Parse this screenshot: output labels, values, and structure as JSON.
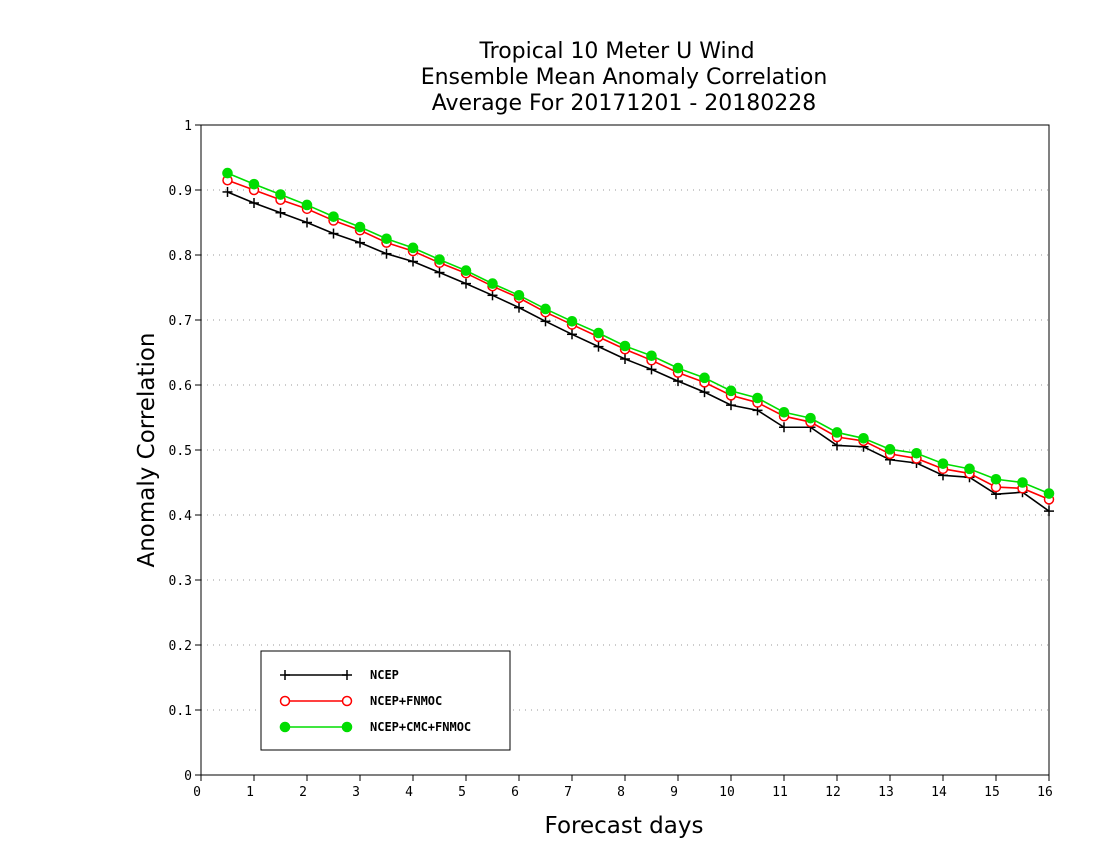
{
  "chart_data": {
    "type": "line",
    "title": [
      "Tropical 10 Meter U Wind",
      "Ensemble Mean Anomaly Correlation",
      "Average For 20171201 - 20180228"
    ],
    "xlabel": "Forecast days",
    "ylabel": "Anomaly Correlation",
    "xlim": [
      0,
      16
    ],
    "ylim": [
      0,
      1
    ],
    "xticks": [
      "0",
      "1",
      "2",
      "3",
      "4",
      "5",
      "6",
      "7",
      "8",
      "9",
      "10",
      "11",
      "12",
      "13",
      "14",
      "15",
      "16"
    ],
    "yticks": [
      "0",
      "0.1",
      "0.2",
      "0.3",
      "0.4",
      "0.5",
      "0.6",
      "0.7",
      "0.8",
      "0.9",
      "1"
    ],
    "grid": "horizontal dotted",
    "legend_position": "bottom-left",
    "x": [
      0.5,
      1,
      1.5,
      2,
      2.5,
      3,
      3.5,
      4,
      4.5,
      5,
      5.5,
      6,
      6.5,
      7,
      7.5,
      8,
      8.5,
      9,
      9.5,
      10,
      10.5,
      11,
      11.5,
      12,
      12.5,
      13,
      13.5,
      14,
      14.5,
      15,
      15.5,
      16
    ],
    "series": [
      {
        "name": "NCEP",
        "color": "#000000",
        "marker": "plus",
        "values": [
          0.897,
          0.88,
          0.865,
          0.85,
          0.833,
          0.819,
          0.802,
          0.79,
          0.773,
          0.756,
          0.738,
          0.719,
          0.698,
          0.678,
          0.659,
          0.64,
          0.624,
          0.606,
          0.589,
          0.569,
          0.561,
          0.535,
          0.535,
          0.507,
          0.505,
          0.485,
          0.48,
          0.461,
          0.458,
          0.432,
          0.435,
          0.406
        ]
      },
      {
        "name": "NCEP+FNMOC",
        "color": "#ff0000",
        "marker": "open-circle",
        "values": [
          0.915,
          0.9,
          0.885,
          0.871,
          0.853,
          0.838,
          0.819,
          0.806,
          0.788,
          0.772,
          0.752,
          0.734,
          0.712,
          0.693,
          0.674,
          0.655,
          0.638,
          0.619,
          0.604,
          0.584,
          0.573,
          0.552,
          0.543,
          0.52,
          0.514,
          0.494,
          0.487,
          0.471,
          0.464,
          0.443,
          0.441,
          0.424
        ]
      },
      {
        "name": "NCEP+CMC+FNMOC",
        "color": "#00dd00",
        "marker": "filled-circle",
        "values": [
          0.926,
          0.909,
          0.893,
          0.877,
          0.859,
          0.843,
          0.825,
          0.811,
          0.793,
          0.776,
          0.756,
          0.738,
          0.717,
          0.698,
          0.68,
          0.66,
          0.645,
          0.626,
          0.611,
          0.591,
          0.58,
          0.558,
          0.549,
          0.527,
          0.518,
          0.501,
          0.495,
          0.479,
          0.471,
          0.455,
          0.45,
          0.433
        ]
      }
    ]
  }
}
